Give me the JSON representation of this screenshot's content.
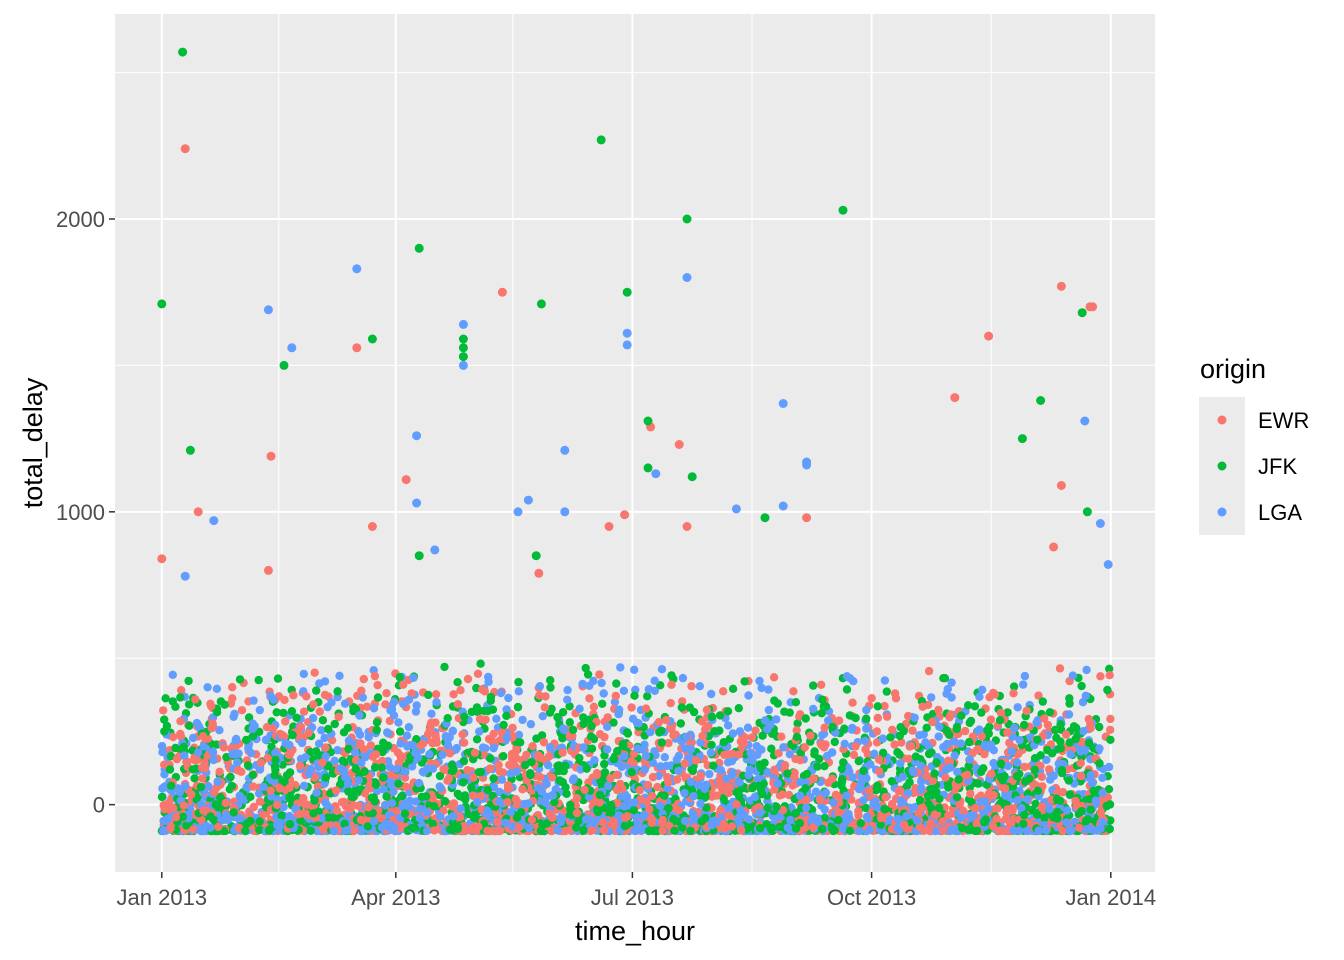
{
  "chart_data": {
    "type": "scatter",
    "title": "",
    "xlabel": "time_hour",
    "ylabel": "total_delay",
    "x_axis": {
      "type": "date",
      "range": [
        "2012-12-14",
        "2014-01-18"
      ],
      "ticks": [
        {
          "value": "2013-01-01",
          "label": "Jan 2013"
        },
        {
          "value": "2013-04-01",
          "label": "Apr 2013"
        },
        {
          "value": "2013-07-01",
          "label": "Jul 2013"
        },
        {
          "value": "2013-10-01",
          "label": "Oct 2013"
        },
        {
          "value": "2014-01-01",
          "label": "Jan 2014"
        }
      ],
      "minor_ticks": [
        "2013-02-15",
        "2013-05-16",
        "2013-08-16",
        "2013-11-16"
      ]
    },
    "y_axis": {
      "range": [
        -230,
        2700
      ],
      "ticks": [
        {
          "value": 0,
          "label": "0"
        },
        {
          "value": 1000,
          "label": "1000"
        },
        {
          "value": 2000,
          "label": "2000"
        }
      ],
      "minor_ticks": [
        500,
        1500,
        2500
      ]
    },
    "grid": true,
    "background": "#ebebeb",
    "legend": {
      "title": "origin",
      "position": "right",
      "entries": [
        {
          "label": "EWR",
          "color": "#F8766D"
        },
        {
          "label": "JFK",
          "color": "#00BA38"
        },
        {
          "label": "LGA",
          "color": "#619CFF"
        }
      ]
    },
    "bulk": {
      "note": "dense band of points per hour",
      "min": -90,
      "max": 500
    },
    "series": [
      {
        "name": "EWR",
        "color": "#F8766D",
        "points": [
          [
            "2013-01-01",
            840
          ],
          [
            "2013-01-10",
            2240
          ],
          [
            "2013-01-15",
            1000
          ],
          [
            "2013-02-12",
            1190
          ],
          [
            "2013-03-17",
            1560
          ],
          [
            "2013-03-23",
            950
          ],
          [
            "2013-04-05",
            1110
          ],
          [
            "2013-05-12",
            1750
          ],
          [
            "2013-06-28",
            990
          ],
          [
            "2013-07-08",
            1290
          ],
          [
            "2013-07-19",
            1230
          ],
          [
            "2013-07-22",
            950
          ],
          [
            "2013-09-06",
            980
          ],
          [
            "2013-11-02",
            1390
          ],
          [
            "2013-11-15",
            1600
          ],
          [
            "2013-12-13",
            1770
          ],
          [
            "2013-12-13",
            1090
          ],
          [
            "2013-12-24",
            1700
          ],
          [
            "2013-12-25",
            1700
          ],
          [
            "2013-02-11",
            800
          ],
          [
            "2013-05-26",
            790
          ],
          [
            "2013-06-22",
            950
          ],
          [
            "2013-12-10",
            880
          ]
        ]
      },
      {
        "name": "JFK",
        "color": "#00BA38",
        "points": [
          [
            "2013-01-01",
            1710
          ],
          [
            "2013-01-09",
            2570
          ],
          [
            "2013-01-12",
            1210
          ],
          [
            "2013-02-17",
            1500
          ],
          [
            "2013-03-23",
            1590
          ],
          [
            "2013-04-10",
            1900
          ],
          [
            "2013-04-27",
            1590
          ],
          [
            "2013-04-27",
            1560
          ],
          [
            "2013-04-27",
            1530
          ],
          [
            "2013-05-27",
            1710
          ],
          [
            "2013-06-19",
            2270
          ],
          [
            "2013-06-29",
            1750
          ],
          [
            "2013-07-07",
            1310
          ],
          [
            "2013-07-07",
            1150
          ],
          [
            "2013-07-22",
            2000
          ],
          [
            "2013-07-24",
            1120
          ],
          [
            "2013-08-21",
            980
          ],
          [
            "2013-09-20",
            2030
          ],
          [
            "2013-11-28",
            1250
          ],
          [
            "2013-12-05",
            1380
          ],
          [
            "2013-12-21",
            1680
          ],
          [
            "2013-12-23",
            1000
          ],
          [
            "2013-04-10",
            850
          ],
          [
            "2013-05-25",
            850
          ]
        ]
      },
      {
        "name": "LGA",
        "color": "#619CFF",
        "points": [
          [
            "2013-01-10",
            780
          ],
          [
            "2013-01-21",
            970
          ],
          [
            "2013-02-11",
            1690
          ],
          [
            "2013-02-20",
            1560
          ],
          [
            "2013-03-17",
            1830
          ],
          [
            "2013-04-09",
            1260
          ],
          [
            "2013-04-09",
            1030
          ],
          [
            "2013-04-27",
            1640
          ],
          [
            "2013-04-27",
            1500
          ],
          [
            "2013-05-18",
            1000
          ],
          [
            "2013-05-22",
            1040
          ],
          [
            "2013-06-05",
            1000
          ],
          [
            "2013-06-05",
            1210
          ],
          [
            "2013-06-29",
            1610
          ],
          [
            "2013-06-29",
            1570
          ],
          [
            "2013-07-10",
            1130
          ],
          [
            "2013-07-22",
            1800
          ],
          [
            "2013-08-10",
            1010
          ],
          [
            "2013-08-28",
            1370
          ],
          [
            "2013-08-28",
            1020
          ],
          [
            "2013-09-06",
            1170
          ],
          [
            "2013-09-06",
            1160
          ],
          [
            "2013-12-22",
            1310
          ],
          [
            "2013-12-28",
            960
          ],
          [
            "2013-12-31",
            820
          ],
          [
            "2013-04-16",
            870
          ]
        ]
      }
    ]
  }
}
